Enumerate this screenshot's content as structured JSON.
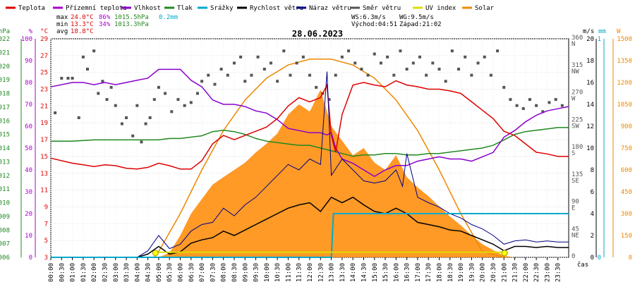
{
  "chart_data": {
    "type": "line",
    "title": "28.06.2023",
    "legend": [
      {
        "name": "Teplota",
        "color": "#dd0000"
      },
      {
        "name": "Přízemní teplota",
        "color": "#aa00cc"
      },
      {
        "name": "Vlhkost",
        "color": "#8800cc"
      },
      {
        "name": "Tlak",
        "color": "#228822"
      },
      {
        "name": "Srážky",
        "color": "#00aacc"
      },
      {
        "name": "Rychlost větru",
        "color": "#000000"
      },
      {
        "name": "Náraz větru",
        "color": "#000088"
      },
      {
        "name": "Směr větru",
        "color": "#555555"
      },
      {
        "name": "UV index",
        "color": "#dddd00"
      },
      {
        "name": "Solar",
        "color": "#ee8800"
      }
    ],
    "stats": {
      "max_label": "max",
      "max_temp": "24.0°C",
      "max_hum": "86%",
      "max_press": "1015.5hPa",
      "rain": "0.2mm",
      "min_label": "min",
      "min_temp": "13.3°C",
      "min_hum": "34%",
      "min_press": "1013.3hPa",
      "avg_label": "avg",
      "avg_temp": "18.8°C",
      "ws": "WS:6.3m/s",
      "wg": "WG:9.5m/s",
      "sunrise": "Východ:04:51",
      "sunset": "Západ:21:02"
    },
    "axes": {
      "hpa": {
        "label": "hPa",
        "ticks": [
          "1022",
          "1021",
          "1020",
          "1019",
          "1018",
          "1017",
          "1016",
          "1015",
          "1014",
          "1013",
          "1012",
          "1011",
          "1010",
          "1009",
          "1008",
          "1007",
          "1006"
        ],
        "range": [
          1006,
          1022
        ],
        "color": "#228822"
      },
      "pct": {
        "label": "%",
        "ticks": [
          "100",
          "90",
          "80",
          "70",
          "60",
          "50",
          "40",
          "30",
          "20",
          "10",
          "0"
        ],
        "range": [
          0,
          100
        ],
        "color": "#aa00cc"
      },
      "degc": {
        "label": "°C",
        "ticks": [
          "29",
          "27",
          "25",
          "23",
          "21",
          "19",
          "17",
          "15",
          "13",
          "11",
          "9",
          "7",
          "5",
          "3"
        ],
        "range": [
          3,
          29
        ],
        "color": "#dd0000"
      },
      "dir": {
        "ticks": [
          "360",
          "315",
          "270",
          "225",
          "180",
          "135",
          "90",
          "45",
          "0"
        ],
        "names": [
          "N",
          "NW",
          "W",
          "SW",
          "S",
          "SE",
          "E",
          "NE",
          ""
        ],
        "range": [
          0,
          360
        ]
      },
      "ms": {
        "label": "m/s",
        "ticks": [
          "20",
          "18",
          "16",
          "14",
          "12",
          "10",
          "8",
          "6",
          "4",
          "2",
          "0"
        ],
        "range": [
          0,
          20
        ]
      },
      "mm": {
        "label": "mm",
        "ticks": [
          "1",
          "0"
        ],
        "range": [
          0,
          1
        ],
        "color": "#00aacc"
      },
      "w": {
        "label": "W",
        "ticks": [
          "1500",
          "1350",
          "1200",
          "1050",
          "900",
          "750",
          "600",
          "450",
          "300",
          "150",
          "0"
        ],
        "range": [
          0,
          1500
        ],
        "color": "#ee8800"
      },
      "x_label": "čas",
      "x_ticks": [
        "00:00",
        "00:30",
        "01:00",
        "01:30",
        "02:00",
        "02:30",
        "03:00",
        "03:30",
        "04:00",
        "04:30",
        "05:00",
        "05:30",
        "06:00",
        "06:30",
        "07:00",
        "07:30",
        "08:00",
        "08:30",
        "09:00",
        "09:30",
        "10:00",
        "10:30",
        "11:00",
        "11:30",
        "12:00",
        "12:30",
        "13:00",
        "13:30",
        "14:00",
        "14:30",
        "15:00",
        "15:30",
        "16:00",
        "16:30",
        "17:00",
        "17:30",
        "18:00",
        "18:30",
        "19:00",
        "19:30",
        "20:00",
        "20:30",
        "21:00",
        "21:30",
        "22:00",
        "22:30",
        "23:00",
        "23:30"
      ]
    },
    "series": [
      {
        "name": "Teplota",
        "color": "#dd0000",
        "axis": "degc",
        "x": [
          0,
          1,
          1.5,
          2,
          2.5,
          3,
          3.5,
          4,
          4.5,
          5,
          5.5,
          6,
          6.5,
          7,
          7.5,
          8,
          8.5,
          9,
          9.5,
          10,
          10.5,
          11,
          11.5,
          12,
          12.5,
          12.8,
          13,
          13.2,
          13.5,
          14,
          14.5,
          15,
          15.5,
          16,
          16.5,
          17,
          17.5,
          18,
          18.5,
          19,
          19.5,
          20,
          20.5,
          21,
          21.5,
          22,
          22.5,
          23,
          23.5,
          24
        ],
        "y": [
          14.8,
          14.2,
          14.0,
          13.8,
          14.0,
          13.9,
          13.6,
          13.5,
          13.7,
          14.2,
          13.9,
          13.5,
          13.5,
          14.5,
          16.5,
          17.5,
          17.0,
          17.5,
          18.0,
          18.5,
          19.5,
          21.0,
          22.0,
          21.5,
          22.0,
          23.5,
          17.5,
          15.5,
          20.0,
          23.5,
          23.8,
          23.5,
          23.3,
          24.0,
          23.5,
          23.3,
          23.0,
          23.0,
          22.8,
          22.5,
          21.5,
          20.5,
          19.5,
          18.0,
          17.5,
          16.5,
          15.5,
          15.3,
          15.0,
          15.0
        ]
      },
      {
        "name": "Vlhkost",
        "color": "#8800cc",
        "axis": "pct",
        "x": [
          0,
          1,
          1.5,
          2,
          2.5,
          3,
          3.5,
          4,
          4.5,
          5,
          5.5,
          6,
          6.5,
          7,
          7.5,
          8,
          8.5,
          9,
          9.5,
          10,
          10.5,
          11,
          11.5,
          12,
          12.5,
          12.8,
          13,
          13.2,
          13.5,
          14,
          14.5,
          15,
          15.5,
          16,
          16.5,
          17,
          17.5,
          18,
          18.5,
          19,
          19.5,
          20,
          20.5,
          21,
          21.5,
          22,
          22.5,
          23,
          23.5,
          24
        ],
        "y": [
          78,
          80,
          80,
          79,
          80,
          79,
          80,
          81,
          82,
          86,
          86,
          86,
          81,
          78,
          72,
          70,
          70,
          69,
          67,
          66,
          63,
          59,
          58,
          57,
          57,
          56,
          57,
          50,
          45,
          43,
          40,
          37,
          40,
          42,
          42,
          44,
          45,
          46,
          45,
          45,
          44,
          46,
          48,
          55,
          58,
          62,
          65,
          67,
          68,
          69
        ]
      },
      {
        "name": "Tlak",
        "color": "#228822",
        "axis": "hpa",
        "x": [
          0,
          1,
          2,
          3,
          4,
          5,
          5.5,
          6,
          6.5,
          7,
          7.5,
          8,
          8.5,
          9,
          9.5,
          10,
          10.5,
          11,
          11.5,
          12,
          12.5,
          13,
          13.5,
          14,
          14.5,
          15,
          15.5,
          16,
          16.5,
          17,
          17.5,
          18,
          18.5,
          19,
          19.5,
          20,
          20.5,
          21,
          21.5,
          22,
          22.5,
          23,
          23.5,
          24
        ],
        "y": [
          1014.5,
          1014.5,
          1014.6,
          1014.6,
          1014.6,
          1014.6,
          1014.7,
          1014.7,
          1014.8,
          1014.9,
          1015.2,
          1015.3,
          1015.2,
          1015.0,
          1014.7,
          1014.5,
          1014.4,
          1014.3,
          1014.2,
          1014.2,
          1014.0,
          1013.8,
          1013.6,
          1013.4,
          1013.5,
          1013.5,
          1013.6,
          1013.6,
          1013.5,
          1013.5,
          1013.6,
          1013.6,
          1013.7,
          1013.8,
          1013.9,
          1014.0,
          1014.2,
          1014.6,
          1015.0,
          1015.2,
          1015.3,
          1015.4,
          1015.5,
          1015.5
        ]
      },
      {
        "name": "Srážky",
        "color": "#00aacc",
        "axis": "mm",
        "x": [
          0,
          13.0,
          13.05,
          13.1,
          24
        ],
        "y": [
          0,
          0,
          0.1,
          0.2,
          0.2
        ]
      },
      {
        "name": "Rychlost větru",
        "color": "#000000",
        "axis": "ms",
        "x": [
          0,
          4,
          4.5,
          5,
          5.5,
          6,
          6.5,
          7,
          7.5,
          8,
          8.5,
          9,
          9.5,
          10,
          10.5,
          11,
          11.5,
          12,
          12.5,
          13,
          13.5,
          14,
          14.5,
          15,
          15.5,
          16,
          16.5,
          17,
          17.5,
          18,
          18.5,
          19,
          19.5,
          20,
          20.5,
          21,
          21.5,
          22,
          22.5,
          23,
          23.5,
          24
        ],
        "y": [
          0,
          0,
          0.3,
          1.0,
          0.3,
          0.5,
          1.3,
          1.6,
          1.8,
          2.4,
          2.0,
          2.5,
          3.0,
          3.5,
          4.0,
          4.5,
          4.8,
          5.0,
          4.2,
          5.5,
          5.0,
          5.5,
          4.8,
          4.2,
          4.0,
          4.5,
          4.0,
          3.2,
          3.0,
          2.8,
          2.5,
          2.4,
          2.0,
          1.6,
          1.2,
          0.6,
          1.0,
          1.0,
          0.9,
          1.0,
          0.9,
          0.9
        ]
      },
      {
        "name": "Náraz větru",
        "color": "#000088",
        "axis": "ms",
        "x": [
          0,
          4,
          4.5,
          5,
          5.5,
          6,
          6.5,
          7,
          7.5,
          8,
          8.5,
          9,
          9.5,
          10,
          10.5,
          11,
          11.5,
          12,
          12.5,
          12.8,
          13,
          13.5,
          14,
          14.5,
          15,
          15.5,
          16,
          16.3,
          16.5,
          17,
          17.5,
          18,
          18.5,
          19,
          19.5,
          20,
          20.5,
          21,
          21.5,
          22,
          22.5,
          23,
          23.5,
          24
        ],
        "y": [
          0,
          0,
          0.6,
          2.0,
          0.8,
          1.2,
          2.4,
          3.0,
          3.2,
          4.5,
          3.8,
          4.8,
          5.5,
          6.5,
          7.5,
          8.5,
          8.0,
          9.0,
          8.5,
          17.0,
          7.5,
          9.0,
          8.0,
          7.0,
          6.8,
          7.0,
          8.0,
          6.5,
          9.5,
          5.5,
          5.0,
          4.6,
          4.0,
          3.6,
          3.0,
          2.6,
          2.0,
          1.2,
          1.5,
          1.6,
          1.4,
          1.5,
          1.4,
          1.4
        ]
      },
      {
        "name": "Solar",
        "color": "#ee8800",
        "axis": "w",
        "x": [
          0,
          4.5,
          5,
          5.5,
          6,
          6.5,
          7,
          7.5,
          8,
          8.5,
          9,
          9.5,
          10,
          10.5,
          11,
          11.5,
          12,
          12.5,
          13,
          13.5,
          14,
          14.5,
          15,
          15.5,
          16,
          16.5,
          17,
          17.5,
          18,
          18.5,
          19,
          19.5,
          20,
          20.5,
          21,
          21.5,
          24
        ],
        "y": [
          0,
          0,
          0,
          30,
          150,
          300,
          400,
          500,
          550,
          600,
          650,
          720,
          780,
          850,
          980,
          1050,
          1000,
          1150,
          900,
          800,
          700,
          750,
          650,
          600,
          700,
          550,
          480,
          420,
          350,
          280,
          220,
          150,
          90,
          50,
          10,
          0,
          0
        ]
      },
      {
        "name": "Solar max",
        "color": "#ee8800",
        "axis": "w",
        "x": [
          4.8,
          5,
          6,
          7,
          8,
          9,
          10,
          11,
          12,
          13,
          14,
          15,
          16,
          17,
          18,
          19,
          20,
          21,
          21.1
        ],
        "y": [
          0,
          40,
          300,
          600,
          870,
          1080,
          1230,
          1320,
          1360,
          1360,
          1320,
          1230,
          1080,
          870,
          600,
          300,
          40,
          0,
          0
        ]
      },
      {
        "name": "UV index",
        "color": "#dddd00",
        "axis": "w",
        "x": [
          4.9,
          21.0
        ],
        "y": [
          35,
          35
        ]
      },
      {
        "name": "Směr větru",
        "color": "#555555",
        "axis": "dir",
        "x": [
          0.2,
          0.5,
          0.8,
          1.0,
          1.3,
          1.5,
          1.7,
          2.0,
          2.2,
          2.4,
          2.6,
          2.8,
          3.0,
          3.3,
          3.5,
          3.8,
          4.0,
          4.2,
          4.4,
          4.6,
          4.8,
          5.0,
          5.3,
          5.6,
          5.9,
          6.2,
          6.5,
          6.8,
          7.0,
          7.3,
          7.6,
          7.9,
          8.2,
          8.5,
          8.8,
          9.0,
          9.3,
          9.6,
          9.9,
          10.2,
          10.5,
          10.8,
          11.1,
          11.4,
          11.7,
          12.0,
          12.3,
          12.6,
          12.9,
          13.2,
          13.5,
          13.8,
          14.1,
          14.4,
          14.7,
          15.0,
          15.3,
          15.6,
          15.9,
          16.2,
          16.5,
          16.8,
          17.1,
          17.4,
          17.7,
          18.0,
          18.3,
          18.6,
          18.9,
          19.2,
          19.5,
          19.8,
          20.1,
          20.4,
          20.7,
          21.0,
          21.3,
          21.6,
          21.9,
          22.2,
          22.5,
          22.8,
          23.1,
          23.4,
          23.7
        ],
        "y": [
          238,
          295,
          295,
          295,
          230,
          330,
          310,
          340,
          270,
          290,
          260,
          280,
          250,
          220,
          230,
          200,
          250,
          190,
          220,
          230,
          260,
          280,
          270,
          240,
          260,
          250,
          255,
          270,
          290,
          300,
          285,
          310,
          300,
          320,
          330,
          290,
          300,
          330,
          310,
          320,
          290,
          340,
          300,
          320,
          330,
          300,
          280,
          270,
          260,
          300,
          330,
          340,
          320,
          310,
          300,
          335,
          320,
          330,
          300,
          340,
          310,
          320,
          330,
          300,
          320,
          310,
          290,
          340,
          310,
          330,
          300,
          320,
          330,
          300,
          340,
          280,
          260,
          250,
          245,
          260,
          250,
          240,
          255,
          260,
          250
        ]
      }
    ]
  }
}
